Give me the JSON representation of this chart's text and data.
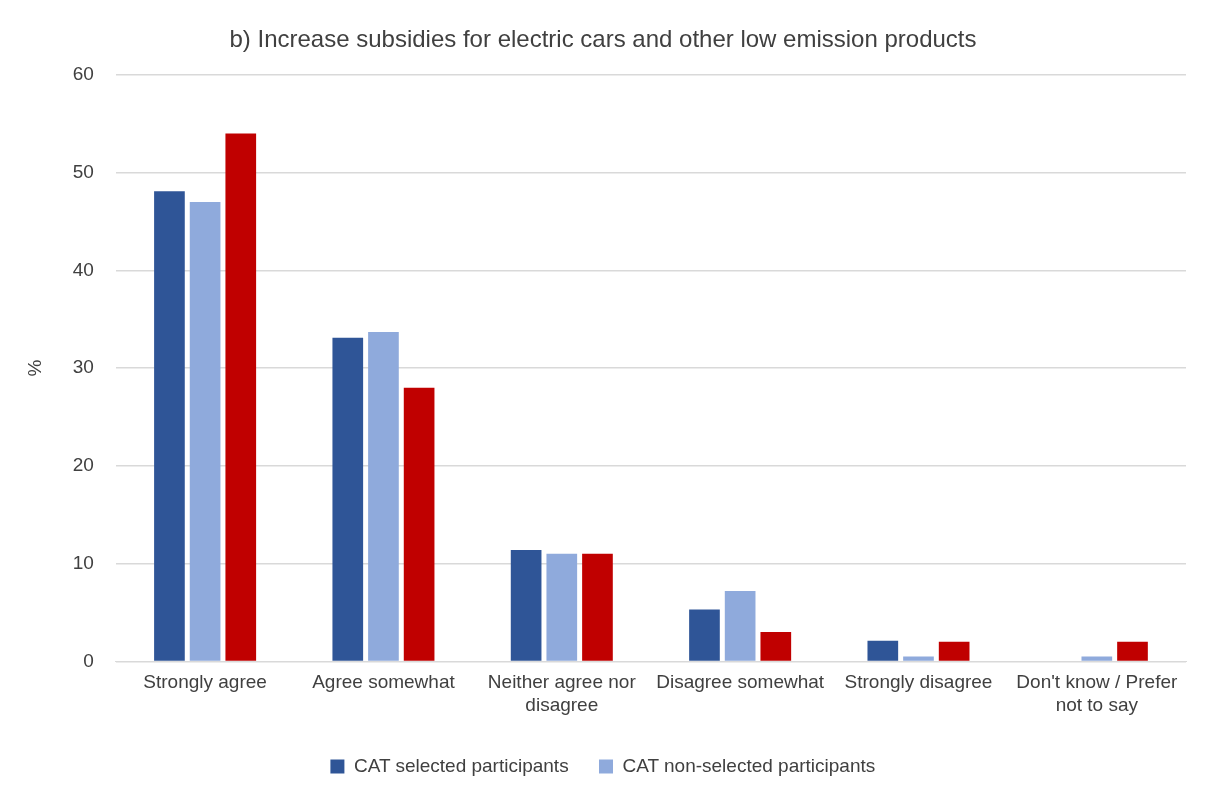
{
  "chart_data": {
    "type": "bar",
    "title": "b) Increase subsidies for electric cars and other low emission products",
    "ylabel": "%",
    "categories": [
      "Strongly agree",
      "Agree somewhat",
      "Neither agree nor disagree",
      "Disagree somewhat",
      "Strongly disagree",
      "Don't know / Prefer not to say"
    ],
    "series": [
      {
        "name": "CAT selected participants",
        "color": "#2f5597",
        "values": [
          48.1,
          33.1,
          11.4,
          5.3,
          2.1,
          0
        ]
      },
      {
        "name": "CAT non-selected participants",
        "color": "#8faadc",
        "values": [
          47,
          33.7,
          11,
          7.2,
          0.5,
          0.5
        ]
      },
      {
        "color": "#c00000",
        "values": [
          54,
          28,
          11,
          3,
          2,
          2
        ]
      }
    ],
    "ylim": [
      0,
      60
    ],
    "yticks": [
      0,
      10,
      20,
      30,
      40,
      50,
      60
    ],
    "grid": "y",
    "legend": "bottom"
  }
}
